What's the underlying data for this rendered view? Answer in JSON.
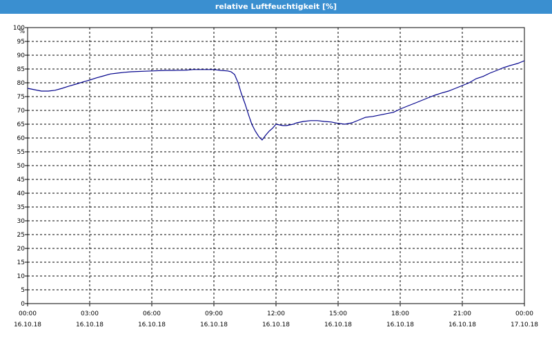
{
  "window": {
    "title": "relative Luftfeuchtigkeit [%]",
    "title_bg": "#3a8fd0"
  },
  "chart_data": {
    "type": "line",
    "title": "relative Luftfeuchtigkeit [%]",
    "ylabel": "%",
    "xlabel": "",
    "ylim": [
      0,
      100
    ],
    "xlim": [
      0,
      24
    ],
    "y_ticks": [
      0,
      5,
      10,
      15,
      20,
      25,
      30,
      35,
      40,
      45,
      50,
      55,
      60,
      65,
      70,
      75,
      80,
      85,
      90,
      95,
      100
    ],
    "x_ticks": [
      {
        "value": 0,
        "time": "00:00",
        "date": "16.10.18"
      },
      {
        "value": 3,
        "time": "03:00",
        "date": "16.10.18"
      },
      {
        "value": 6,
        "time": "06:00",
        "date": "16.10.18"
      },
      {
        "value": 9,
        "time": "09:00",
        "date": "16.10.18"
      },
      {
        "value": 12,
        "time": "12:00",
        "date": "16.10.18"
      },
      {
        "value": 15,
        "time": "15:00",
        "date": "16.10.18"
      },
      {
        "value": 18,
        "time": "18:00",
        "date": "16.10.18"
      },
      {
        "value": 21,
        "time": "21:00",
        "date": "16.10.18"
      },
      {
        "value": 24,
        "time": "00:00",
        "date": "17.10.18"
      }
    ],
    "grid": true,
    "line_color": "#00008b",
    "series": [
      {
        "x": [
          0,
          0.33,
          0.67,
          1.0,
          1.33,
          1.67,
          2.0,
          2.33,
          2.67,
          3.0,
          3.33,
          3.67,
          4.0,
          4.33,
          4.67,
          5.0,
          5.67,
          6.0,
          6.67,
          7.0,
          7.67,
          8.0,
          8.67,
          9.0,
          9.33,
          9.67,
          9.83,
          10.0,
          10.17,
          10.33,
          10.5,
          10.67,
          10.83,
          11.0,
          11.17,
          11.33,
          11.5,
          11.67,
          11.83,
          12.0,
          12.33,
          12.5,
          12.83,
          13.0,
          13.33,
          13.67,
          14.0,
          14.33,
          14.67,
          15.0,
          15.33,
          15.67,
          16.0,
          16.33,
          16.67,
          17.0,
          17.33,
          17.67,
          18.0,
          18.33,
          18.67,
          19.0,
          19.33,
          19.67,
          20.0,
          20.33,
          20.67,
          21.0,
          21.33,
          21.67,
          22.0,
          22.33,
          22.67,
          23.0,
          23.33,
          23.67,
          24.0
        ],
        "values": [
          78.0,
          77.5,
          77.0,
          77.0,
          77.3,
          78.0,
          78.8,
          79.5,
          80.3,
          81.0,
          81.8,
          82.5,
          83.2,
          83.5,
          83.8,
          84.0,
          84.2,
          84.3,
          84.5,
          84.5,
          84.6,
          84.8,
          84.8,
          84.8,
          84.5,
          84.3,
          84.0,
          83.0,
          80.0,
          76.0,
          72.5,
          68.5,
          65.0,
          62.5,
          60.5,
          59.3,
          61.0,
          62.5,
          63.5,
          65.0,
          64.5,
          64.5,
          65.0,
          65.5,
          66.0,
          66.3,
          66.3,
          66.0,
          65.8,
          65.3,
          65.0,
          65.5,
          66.5,
          67.5,
          67.8,
          68.3,
          68.8,
          69.3,
          70.5,
          71.5,
          72.5,
          73.5,
          74.5,
          75.5,
          76.3,
          77.0,
          78.0,
          79.0,
          80.0,
          81.5,
          82.3,
          83.5,
          84.5,
          85.5,
          86.3,
          87.0,
          88.0
        ]
      }
    ]
  }
}
